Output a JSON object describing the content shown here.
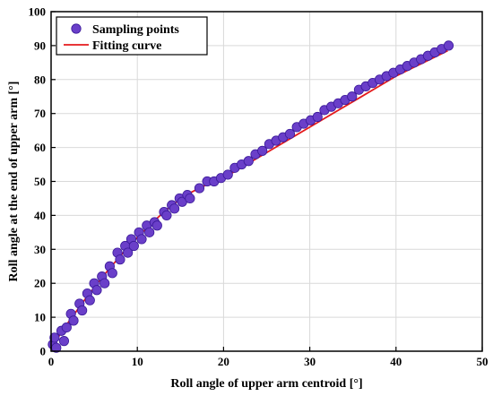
{
  "chart_data": {
    "type": "scatter",
    "title": "",
    "xlabel": "Roll angle of upper arm centroid [°]",
    "ylabel": "Roll angle at the end of upper arm [°]",
    "xlim": [
      0,
      50
    ],
    "ylim": [
      0,
      100
    ],
    "xticks": [
      "0",
      "10",
      "20",
      "30",
      "40",
      "50"
    ],
    "yticks": [
      "0",
      "10",
      "20",
      "30",
      "40",
      "50",
      "60",
      "70",
      "80",
      "90",
      "100"
    ],
    "grid": true,
    "legend_position": "top-left",
    "series": [
      {
        "name": "Sampling points",
        "kind": "scatter",
        "color": "#6a3fc9",
        "x": [
          0.2,
          0.4,
          0.6,
          1.2,
          1.5,
          1.8,
          2.3,
          2.6,
          3.3,
          3.6,
          4.2,
          4.5,
          5.0,
          5.3,
          5.9,
          6.2,
          6.8,
          7.1,
          7.7,
          8.0,
          8.6,
          8.9,
          9.3,
          9.6,
          10.2,
          10.5,
          11.1,
          11.4,
          12.0,
          12.3,
          13.1,
          13.4,
          14.0,
          14.3,
          14.9,
          15.2,
          15.8,
          16.1,
          17.2,
          18.1,
          18.9,
          19.7,
          20.5,
          21.3,
          22.1,
          22.9,
          23.7,
          24.5,
          25.3,
          26.1,
          26.9,
          27.7,
          28.5,
          29.3,
          30.1,
          30.9,
          31.7,
          32.5,
          33.3,
          34.1,
          34.9,
          35.7,
          36.5,
          37.3,
          38.1,
          38.9,
          39.7,
          40.5,
          41.3,
          42.1,
          42.9,
          43.7,
          44.5,
          45.3,
          46.1
        ],
        "y": [
          2,
          4,
          1,
          6,
          3,
          7,
          11,
          9,
          14,
          12,
          17,
          15,
          20,
          18,
          22,
          20,
          25,
          23,
          29,
          27,
          31,
          29,
          33,
          31,
          35,
          33,
          37,
          35,
          38,
          37,
          41,
          40,
          43,
          42,
          45,
          44,
          46,
          45,
          48,
          50,
          50,
          51,
          52,
          54,
          55,
          56,
          58,
          59,
          61,
          62,
          63,
          64,
          66,
          67,
          68,
          69,
          71,
          72,
          73,
          74,
          75,
          77,
          78,
          79,
          80,
          81,
          82,
          83,
          84,
          85,
          86,
          87,
          88,
          89,
          90
        ]
      },
      {
        "name": "Fitting curve",
        "kind": "line",
        "color": "#e41a1c",
        "x": [
          0,
          2,
          4,
          6,
          8,
          10,
          12,
          14,
          16,
          18,
          20,
          22,
          24,
          26,
          28,
          30,
          32,
          34,
          36,
          38,
          40,
          42,
          44,
          46
        ],
        "y": [
          1,
          8.5,
          15.5,
          22,
          28,
          33.5,
          38.5,
          43,
          46.5,
          49,
          51,
          54,
          57,
          60,
          63,
          66,
          69,
          72,
          75,
          78,
          81,
          83.5,
          86,
          88.5
        ]
      }
    ]
  }
}
